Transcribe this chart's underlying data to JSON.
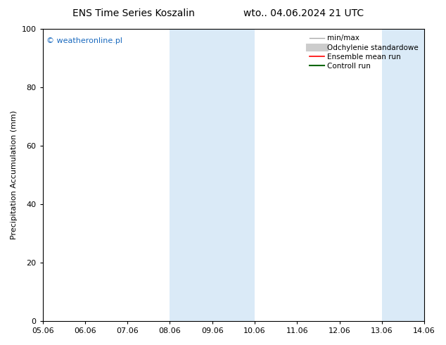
{
  "title_left": "ENS Time Series Koszalin",
  "title_right": "wto.. 04.06.2024 21 UTC",
  "ylabel": "Precipitation Accumulation (mm)",
  "watermark": "© weatheronline.pl",
  "watermark_color": "#1a6abf",
  "xlim_min": 0,
  "xlim_max": 9,
  "ylim_min": 0,
  "ylim_max": 100,
  "yticks": [
    0,
    20,
    40,
    60,
    80,
    100
  ],
  "xtick_labels": [
    "05.06",
    "06.06",
    "07.06",
    "08.06",
    "09.06",
    "10.06",
    "11.06",
    "12.06",
    "13.06",
    "14.06"
  ],
  "background_color": "#ffffff",
  "shaded_regions": [
    {
      "xmin": 3,
      "xmax": 5,
      "color": "#daeaf7"
    },
    {
      "xmin": 8,
      "xmax": 9,
      "color": "#daeaf7"
    }
  ],
  "legend_entries": [
    {
      "label": "min/max",
      "color": "#aaaaaa",
      "linewidth": 1.0,
      "style": "line"
    },
    {
      "label": "Odchylenie standardowe",
      "color": "#cccccc",
      "linewidth": 8,
      "style": "line"
    },
    {
      "label": "Ensemble mean run",
      "color": "#ff0000",
      "linewidth": 1.2,
      "style": "line"
    },
    {
      "label": "Controll run",
      "color": "#006600",
      "linewidth": 1.5,
      "style": "line"
    }
  ],
  "title_fontsize": 10,
  "axis_fontsize": 8,
  "tick_fontsize": 8,
  "legend_fontsize": 7.5,
  "watermark_fontsize": 8
}
